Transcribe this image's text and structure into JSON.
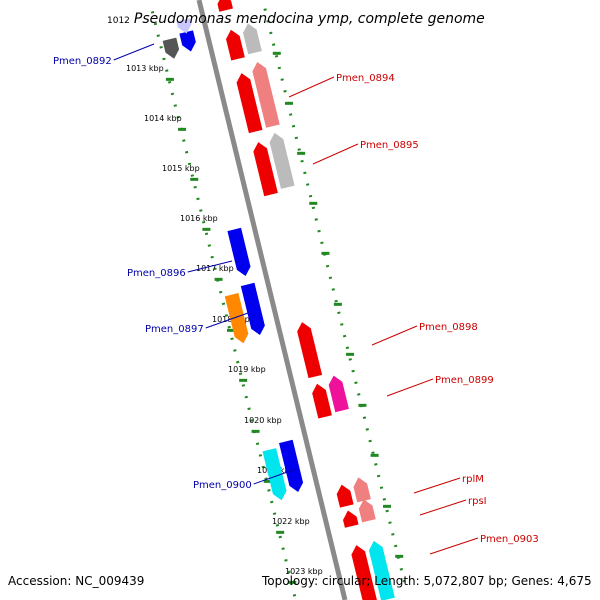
{
  "title": {
    "start_label": "1012",
    "text": "Pseudomonas mendocina ymp, complete genome"
  },
  "footer": {
    "accession": "Accession: NC_009439",
    "topology": "Topology: circular; Length: 5,072,807 bp; Genes: 4,675"
  },
  "ruler": {
    "labels": [
      "1013 kbp",
      "1014 kbp",
      "1015 kbp",
      "1016 kbp",
      "1017 kbp",
      "1018 kbp",
      "1019 kbp",
      "1020 kbp",
      "1021 kbp",
      "1022 kbp",
      "1023 kbp"
    ]
  },
  "genes_plus": [
    {
      "label": "Pmen_0894",
      "color": "#ee0000"
    },
    {
      "label": "Pmen_0895",
      "color": "#ee0000"
    },
    {
      "label": "Pmen_0898",
      "color": "#ee0000"
    },
    {
      "label": "Pmen_0899",
      "color": "#ee0000"
    },
    {
      "label": "rplM",
      "color": "#ee0000"
    },
    {
      "label": "rpsI",
      "color": "#ee0000"
    },
    {
      "label": "Pmen_0903",
      "color": "#ee0000"
    }
  ],
  "genes_minus": [
    {
      "label": "Pmen_0892",
      "color": "#0000aa"
    },
    {
      "label": "Pmen_0896",
      "color": "#0000aa"
    },
    {
      "label": "Pmen_0897",
      "color": "#0000aa"
    },
    {
      "label": "Pmen_0900",
      "color": "#0000aa"
    }
  ],
  "colors": {
    "plus_strand_label": "#cc0000",
    "minus_strand_label": "#0000aa",
    "ruler": "#228822",
    "backbone": "#888888",
    "gene_red": "#ee0000",
    "gene_pink": "#f08080",
    "gene_gray": "#bbbbbb",
    "gene_blue": "#0000ee",
    "gene_orange": "#ff8800",
    "gene_cyan": "#00e5ee",
    "gene_magenta": "#ee1199"
  }
}
